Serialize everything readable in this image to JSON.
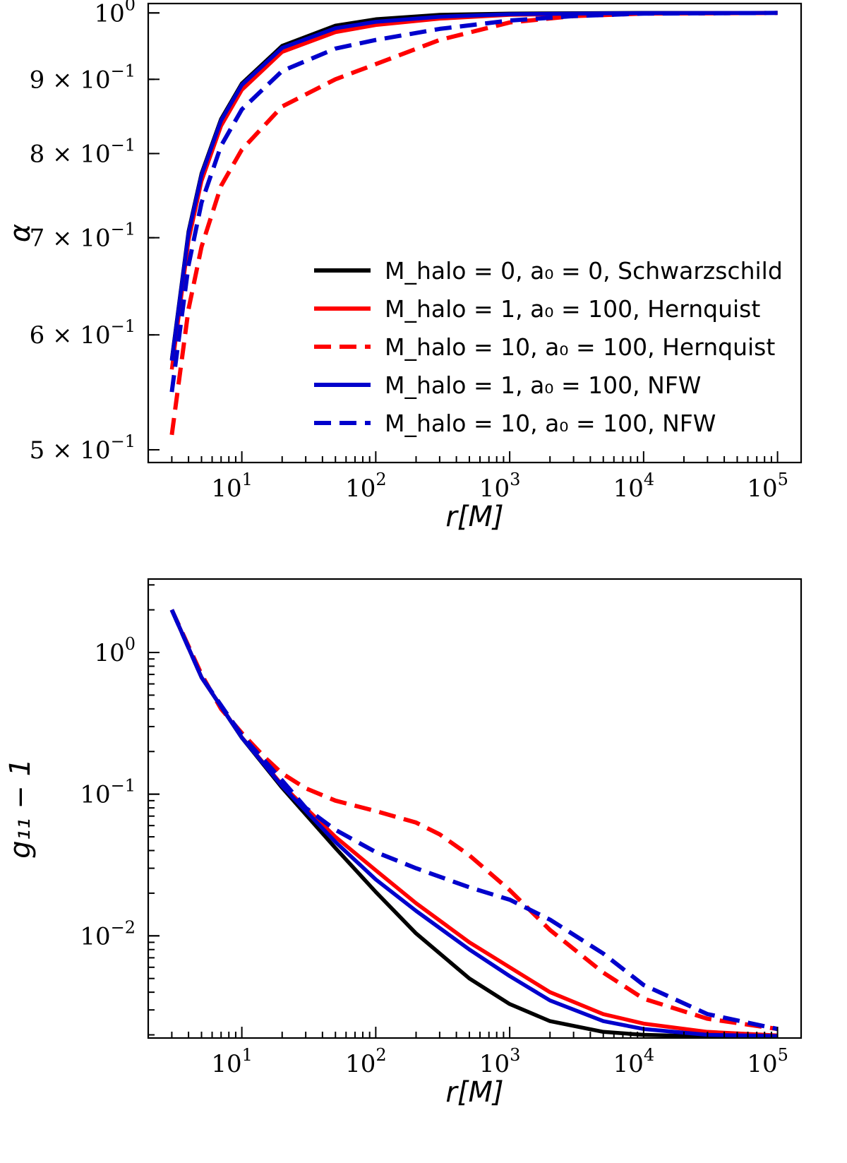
{
  "colors": {
    "black": "#000000",
    "red": "#ff0000",
    "blue": "#0000cc"
  },
  "legend": [
    {
      "label": "M_halo = 0, a₀ = 0, Schwarzschild",
      "color": "#000000",
      "dash": false
    },
    {
      "label": "M_halo = 1, a₀ = 100, Hernquist",
      "color": "#ff0000",
      "dash": false
    },
    {
      "label": "M_halo = 10, a₀ = 100, Hernquist",
      "color": "#ff0000",
      "dash": true
    },
    {
      "label": "M_halo = 1, a₀ = 100, NFW",
      "color": "#0000cc",
      "dash": false
    },
    {
      "label": "M_halo = 10, a₀ = 100, NFW",
      "color": "#0000cc",
      "dash": true
    }
  ],
  "chart_data": [
    {
      "type": "line",
      "title": "",
      "xlabel": "r[M]",
      "ylabel": "α",
      "xscale": "log",
      "yscale": "log",
      "xlim": [
        2,
        150000
      ],
      "ylim": [
        0.49,
        1.015
      ],
      "xticks": [
        {
          "base": "10",
          "exp": "1",
          "value": 10
        },
        {
          "base": "10",
          "exp": "2",
          "value": 100
        },
        {
          "base": "10",
          "exp": "3",
          "value": 1000
        },
        {
          "base": "10",
          "exp": "4",
          "value": 10000
        },
        {
          "base": "10",
          "exp": "5",
          "value": 100000
        }
      ],
      "yticks": [
        {
          "value": 0.5,
          "label": "5 × 10",
          "exp": "−1"
        },
        {
          "value": 0.6,
          "label": "6 × 10",
          "exp": "−1"
        },
        {
          "value": 0.7,
          "label": "7 × 10",
          "exp": "−1"
        },
        {
          "value": 0.8,
          "label": "8 × 10",
          "exp": "−1"
        },
        {
          "value": 0.9,
          "label": "9 × 10",
          "exp": "−1"
        },
        {
          "value": 1.0,
          "label": "10",
          "exp": "0"
        }
      ],
      "legend_position": "center-right",
      "series": [
        {
          "name": "M_halo = 0, a₀ = 0, Schwarzschild",
          "color": "#000000",
          "dash": false,
          "x": [
            3,
            4,
            5,
            7,
            10,
            20,
            50,
            100,
            300,
            1000,
            10000,
            100000
          ],
          "y": [
            0.577,
            0.707,
            0.775,
            0.845,
            0.894,
            0.949,
            0.98,
            0.99,
            0.997,
            0.999,
            1.0,
            1.0
          ]
        },
        {
          "name": "M_halo = 1, a₀ = 100, Hernquist",
          "color": "#ff0000",
          "dash": false,
          "x": [
            3,
            4,
            5,
            7,
            10,
            20,
            50,
            100,
            300,
            1000,
            10000,
            100000
          ],
          "y": [
            0.568,
            0.697,
            0.766,
            0.836,
            0.885,
            0.94,
            0.97,
            0.981,
            0.991,
            0.997,
            0.9995,
            1.0
          ]
        },
        {
          "name": "M_halo = 10, a₀ = 100, Hernquist",
          "color": "#ff0000",
          "dash": true,
          "x": [
            3,
            4,
            5,
            7,
            10,
            20,
            50,
            100,
            300,
            1000,
            3000,
            10000,
            100000
          ],
          "y": [
            0.512,
            0.625,
            0.69,
            0.76,
            0.805,
            0.862,
            0.9,
            0.922,
            0.958,
            0.985,
            0.995,
            0.999,
            1.0
          ]
        },
        {
          "name": "M_halo = 1, a₀ = 100, NFW",
          "color": "#0000cc",
          "dash": false,
          "x": [
            3,
            4,
            5,
            7,
            10,
            20,
            50,
            100,
            300,
            1000,
            10000,
            100000
          ],
          "y": [
            0.576,
            0.705,
            0.773,
            0.843,
            0.892,
            0.946,
            0.976,
            0.986,
            0.994,
            0.998,
            0.9998,
            1.0
          ]
        },
        {
          "name": "M_halo = 10, a₀ = 100, NFW",
          "color": "#0000cc",
          "dash": true,
          "x": [
            3,
            4,
            5,
            7,
            10,
            20,
            50,
            100,
            300,
            1000,
            3000,
            10000,
            100000
          ],
          "y": [
            0.548,
            0.67,
            0.74,
            0.81,
            0.858,
            0.912,
            0.945,
            0.958,
            0.975,
            0.988,
            0.995,
            0.999,
            1.0
          ]
        }
      ]
    },
    {
      "type": "line",
      "title": "",
      "xlabel": "r[M]",
      "ylabel": "g₁₁ − 1",
      "xscale": "log",
      "yscale": "log",
      "xlim": [
        2,
        150000
      ],
      "ylim": [
        0.0019,
        3.3
      ],
      "xticks": [
        {
          "base": "10",
          "exp": "1",
          "value": 10
        },
        {
          "base": "10",
          "exp": "2",
          "value": 100
        },
        {
          "base": "10",
          "exp": "3",
          "value": 1000
        },
        {
          "base": "10",
          "exp": "4",
          "value": 10000
        },
        {
          "base": "10",
          "exp": "5",
          "value": 100000
        }
      ],
      "yticks": [
        {
          "value": 0.01,
          "label": "10",
          "exp": "−2"
        },
        {
          "value": 0.1,
          "label": "10",
          "exp": "−1"
        },
        {
          "value": 1.0,
          "label": "10",
          "exp": "0"
        }
      ],
      "series": [
        {
          "name": "M_halo = 0, a₀ = 0, Schwarzschild",
          "color": "#000000",
          "dash": false,
          "x": [
            3,
            5,
            10,
            20,
            50,
            100,
            200,
            500,
            1000,
            2000,
            5000,
            10000,
            30000,
            100000
          ],
          "y": [
            2.0,
            0.667,
            0.25,
            0.111,
            0.0417,
            0.0204,
            0.0104,
            0.005,
            0.0033,
            0.0025,
            0.0021,
            0.002,
            0.00195,
            0.00195
          ]
        },
        {
          "name": "M_halo = 1, a₀ = 100, Hernquist",
          "color": "#ff0000",
          "dash": false,
          "x": [
            3,
            5,
            10,
            20,
            50,
            100,
            200,
            500,
            1000,
            2000,
            5000,
            10000,
            30000,
            100000
          ],
          "y": [
            2.0,
            0.667,
            0.252,
            0.116,
            0.05,
            0.029,
            0.017,
            0.009,
            0.006,
            0.004,
            0.0028,
            0.0024,
            0.0021,
            0.00198
          ]
        },
        {
          "name": "M_halo = 10, a₀ = 100, Hernquist",
          "color": "#ff0000",
          "dash": true,
          "x": [
            3,
            5,
            7,
            10,
            15,
            20,
            30,
            50,
            100,
            200,
            300,
            500,
            1000,
            2000,
            5000,
            10000,
            30000,
            100000
          ],
          "y": [
            2.0,
            0.7,
            0.4,
            0.27,
            0.18,
            0.14,
            0.11,
            0.09,
            0.076,
            0.063,
            0.052,
            0.037,
            0.021,
            0.011,
            0.0055,
            0.0036,
            0.0026,
            0.0022
          ]
        },
        {
          "name": "M_halo = 1, a₀ = 100, NFW",
          "color": "#0000cc",
          "dash": false,
          "x": [
            3,
            5,
            10,
            20,
            50,
            100,
            200,
            500,
            1000,
            2000,
            5000,
            10000,
            30000,
            100000
          ],
          "y": [
            2.0,
            0.667,
            0.251,
            0.114,
            0.046,
            0.025,
            0.015,
            0.008,
            0.0052,
            0.0035,
            0.0025,
            0.0022,
            0.002,
            0.00196
          ]
        },
        {
          "name": "M_halo = 10, a₀ = 100, NFW",
          "color": "#0000cc",
          "dash": true,
          "x": [
            3,
            5,
            10,
            20,
            30,
            50,
            100,
            200,
            500,
            1000,
            2000,
            5000,
            10000,
            30000,
            100000
          ],
          "y": [
            2.0,
            0.67,
            0.26,
            0.125,
            0.08,
            0.056,
            0.039,
            0.03,
            0.022,
            0.018,
            0.013,
            0.0075,
            0.0045,
            0.0028,
            0.0022
          ]
        }
      ]
    }
  ]
}
